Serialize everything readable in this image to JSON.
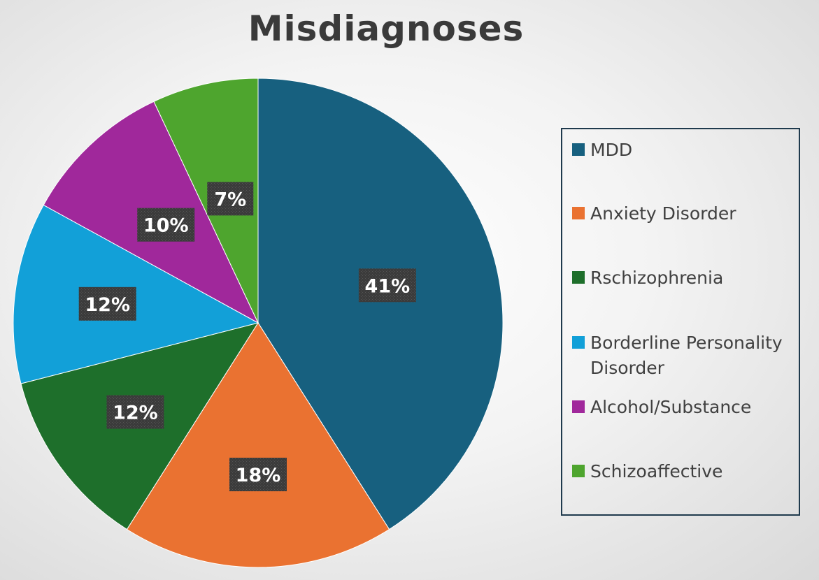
{
  "chart_data": {
    "type": "pie",
    "title": "Misdiagnoses",
    "legend_position": "right",
    "slices": [
      {
        "name": "MDD",
        "value": 41,
        "label": "41%",
        "color": "#17607f"
      },
      {
        "name": "Anxiety Disorder",
        "value": 18,
        "label": "18%",
        "color": "#ea7231"
      },
      {
        "name": "Rschizophrenia",
        "value": 12,
        "label": "12%",
        "color": "#1e6f2b"
      },
      {
        "name": "Borderline Personality Disorder",
        "value": 12,
        "label": "12%",
        "color": "#12a0d8"
      },
      {
        "name": "Alcohol/Substance",
        "value": 10,
        "label": "10%",
        "color": "#a0289b"
      },
      {
        "name": "Schizoaffective",
        "value": 7,
        "label": "7%",
        "color": "#4ea52e"
      }
    ]
  }
}
